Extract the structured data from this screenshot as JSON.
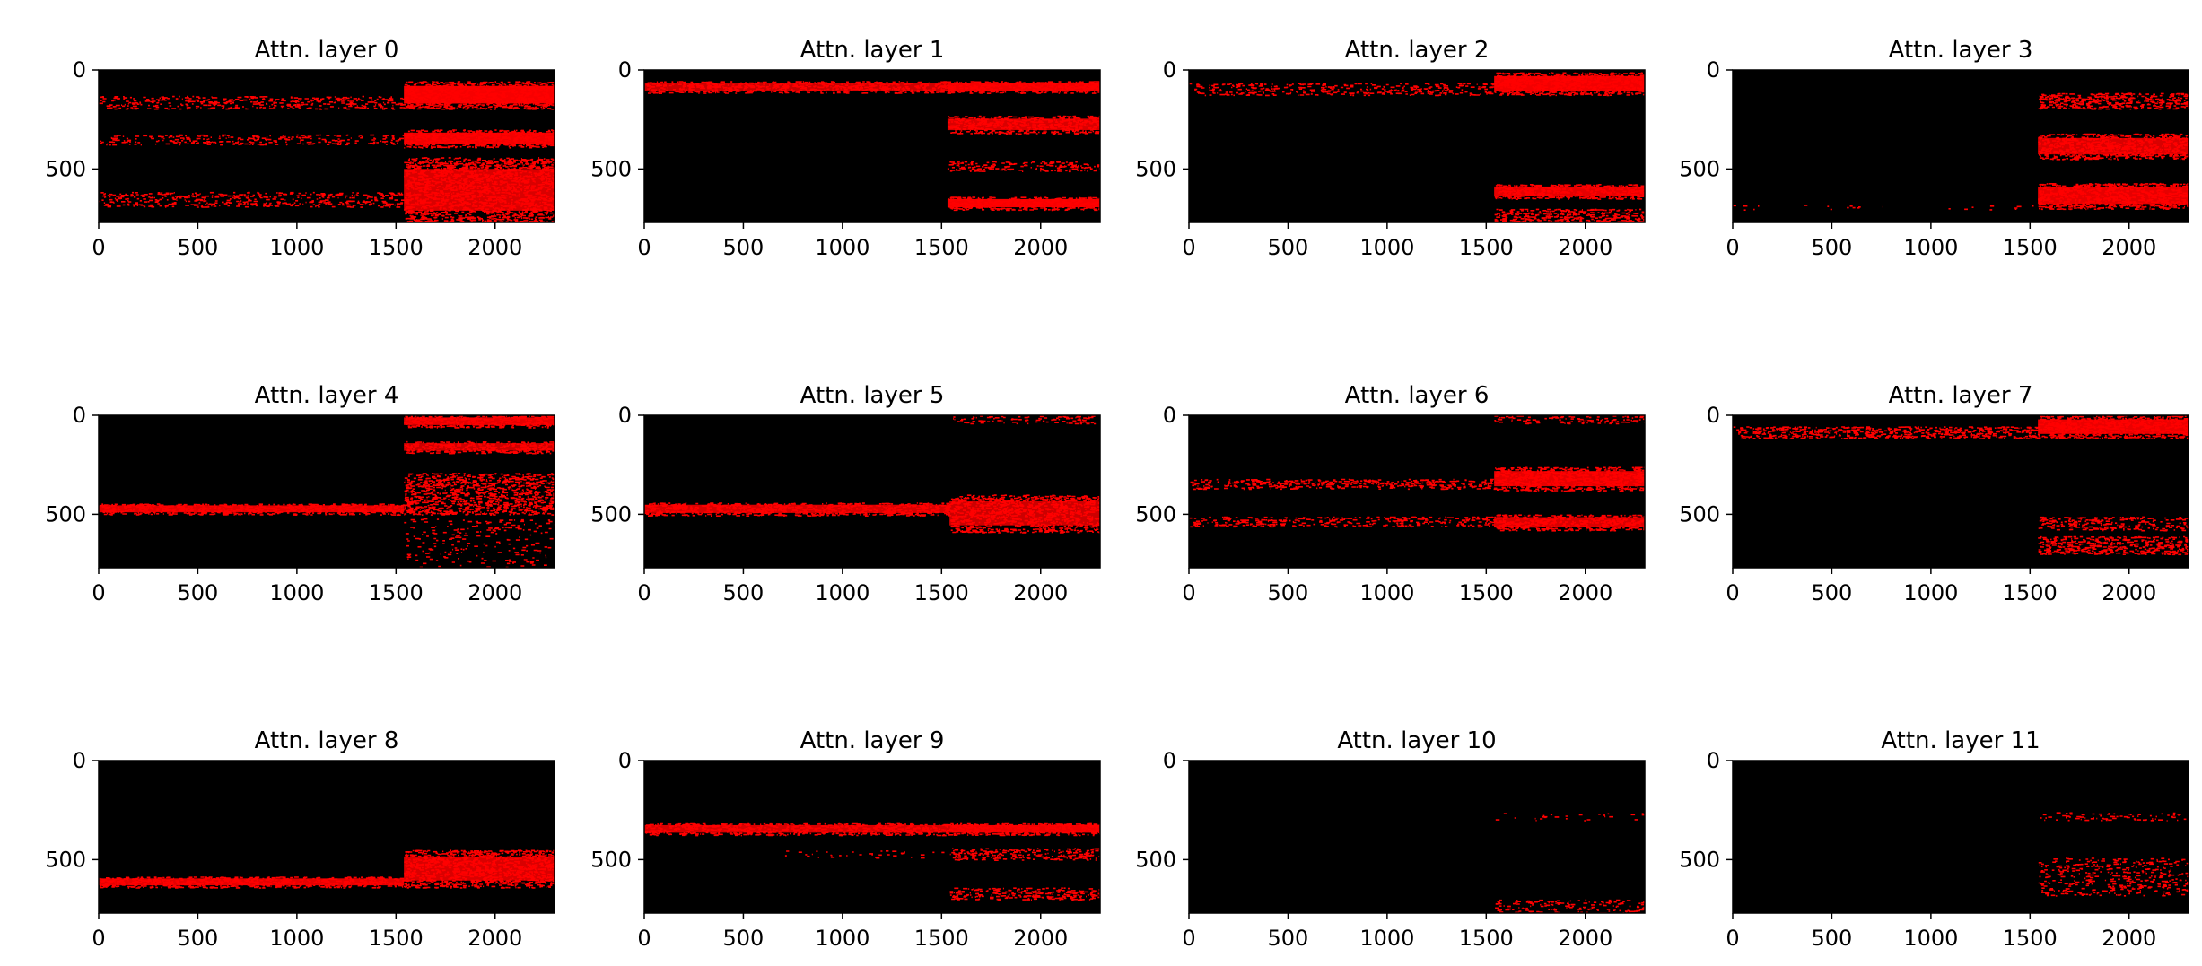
{
  "figure": {
    "background": "#ffffff",
    "plot_background": "#000000",
    "mark_color": "#ff0000"
  },
  "chart_data": [
    {
      "type": "heatmap",
      "title": "Attn. layer 0",
      "xlim": [
        0,
        2300
      ],
      "ylim": [
        770,
        0
      ],
      "xticks": [
        "0",
        "500",
        "1000",
        "1500",
        "2000"
      ],
      "yticks": [
        "0",
        "500"
      ],
      "xtick_values": [
        0,
        500,
        1000,
        1500,
        2000
      ],
      "ytick_values": [
        0,
        500
      ],
      "bands": [
        {
          "x": [
            0,
            1540
          ],
          "y": [
            130,
            195
          ],
          "density": 0.45
        },
        {
          "x": [
            0,
            1540
          ],
          "y": [
            325,
            375
          ],
          "density": 0.4
        },
        {
          "x": [
            0,
            1540
          ],
          "y": [
            615,
            690
          ],
          "density": 0.45
        },
        {
          "x": [
            1540,
            2300
          ],
          "y": [
            55,
            195
          ],
          "density": 0.97
        },
        {
          "x": [
            1540,
            2300
          ],
          "y": [
            300,
            390
          ],
          "density": 0.95
        },
        {
          "x": [
            1540,
            2300
          ],
          "y": [
            440,
            770
          ],
          "density": 0.85
        }
      ]
    },
    {
      "type": "heatmap",
      "title": "Attn. layer 1",
      "xlim": [
        0,
        2300
      ],
      "ylim": [
        770,
        0
      ],
      "xticks": [
        "0",
        "500",
        "1000",
        "1500",
        "2000"
      ],
      "yticks": [
        "0",
        "500"
      ],
      "xtick_values": [
        0,
        500,
        1000,
        1500,
        2000
      ],
      "ytick_values": [
        0,
        500
      ],
      "bands": [
        {
          "x": [
            0,
            1530
          ],
          "y": [
            55,
            115
          ],
          "density": 0.8
        },
        {
          "x": [
            1530,
            2300
          ],
          "y": [
            55,
            115
          ],
          "density": 0.95
        },
        {
          "x": [
            1530,
            2300
          ],
          "y": [
            230,
            320
          ],
          "density": 0.85
        },
        {
          "x": [
            1530,
            2300
          ],
          "y": [
            460,
            510
          ],
          "density": 0.5
        },
        {
          "x": [
            1530,
            2300
          ],
          "y": [
            640,
            705
          ],
          "density": 0.97
        }
      ]
    },
    {
      "type": "heatmap",
      "title": "Attn. layer 2",
      "xlim": [
        0,
        2300
      ],
      "ylim": [
        770,
        0
      ],
      "xticks": [
        "0",
        "500",
        "1000",
        "1500",
        "2000"
      ],
      "yticks": [
        "0",
        "500"
      ],
      "xtick_values": [
        0,
        500,
        1000,
        1500,
        2000
      ],
      "ytick_values": [
        0,
        500
      ],
      "bands": [
        {
          "x": [
            0,
            1540
          ],
          "y": [
            65,
            125
          ],
          "density": 0.45
        },
        {
          "x": [
            1540,
            2300
          ],
          "y": [
            10,
            125
          ],
          "density": 0.95
        },
        {
          "x": [
            1540,
            2300
          ],
          "y": [
            575,
            650
          ],
          "density": 0.9
        },
        {
          "x": [
            1540,
            2300
          ],
          "y": [
            700,
            770
          ],
          "density": 0.7
        }
      ]
    },
    {
      "type": "heatmap",
      "title": "Attn. layer 3",
      "xlim": [
        0,
        2300
      ],
      "ylim": [
        770,
        0
      ],
      "xticks": [
        "0",
        "500",
        "1000",
        "1500",
        "2000"
      ],
      "yticks": [
        "0",
        "500"
      ],
      "xtick_values": [
        0,
        500,
        1000,
        1500,
        2000
      ],
      "ytick_values": [
        0,
        500
      ],
      "bands": [
        {
          "x": [
            0,
            1540
          ],
          "y": [
            680,
            705
          ],
          "density": 0.05
        },
        {
          "x": [
            1540,
            2300
          ],
          "y": [
            115,
            195
          ],
          "density": 0.75
        },
        {
          "x": [
            1540,
            2300
          ],
          "y": [
            320,
            450
          ],
          "density": 0.85
        },
        {
          "x": [
            1540,
            2300
          ],
          "y": [
            570,
            700
          ],
          "density": 0.9
        }
      ]
    },
    {
      "type": "heatmap",
      "title": "Attn. layer 4",
      "xlim": [
        0,
        2300
      ],
      "ylim": [
        770,
        0
      ],
      "xticks": [
        "0",
        "500",
        "1000",
        "1500",
        "2000"
      ],
      "yticks": [
        "0",
        "500"
      ],
      "xtick_values": [
        0,
        500,
        1000,
        1500,
        2000
      ],
      "ytick_values": [
        0,
        500
      ],
      "bands": [
        {
          "x": [
            0,
            1540
          ],
          "y": [
            445,
            500
          ],
          "density": 0.9
        },
        {
          "x": [
            1540,
            2300
          ],
          "y": [
            0,
            60
          ],
          "density": 0.9
        },
        {
          "x": [
            1540,
            2300
          ],
          "y": [
            130,
            190
          ],
          "density": 0.8
        },
        {
          "x": [
            1540,
            2300
          ],
          "y": [
            290,
            500
          ],
          "density": 0.75
        },
        {
          "x": [
            1540,
            2300
          ],
          "y": [
            520,
            770
          ],
          "density": 0.12
        }
      ]
    },
    {
      "type": "heatmap",
      "title": "Attn. layer 5",
      "xlim": [
        0,
        2300
      ],
      "ylim": [
        770,
        0
      ],
      "xticks": [
        "0",
        "500",
        "1000",
        "1500",
        "2000"
      ],
      "yticks": [
        "0",
        "500"
      ],
      "xtick_values": [
        0,
        500,
        1000,
        1500,
        2000
      ],
      "ytick_values": [
        0,
        500
      ],
      "bands": [
        {
          "x": [
            0,
            1540
          ],
          "y": [
            440,
            505
          ],
          "density": 0.85
        },
        {
          "x": [
            1540,
            2300
          ],
          "y": [
            0,
            40
          ],
          "density": 0.35
        },
        {
          "x": [
            1540,
            2300
          ],
          "y": [
            400,
            590
          ],
          "density": 0.8
        }
      ]
    },
    {
      "type": "heatmap",
      "title": "Attn. layer 6",
      "xlim": [
        0,
        2300
      ],
      "ylim": [
        770,
        0
      ],
      "xticks": [
        "0",
        "500",
        "1000",
        "1500",
        "2000"
      ],
      "yticks": [
        "0",
        "500"
      ],
      "xtick_values": [
        0,
        500,
        1000,
        1500,
        2000
      ],
      "ytick_values": [
        0,
        500
      ],
      "bands": [
        {
          "x": [
            0,
            1540
          ],
          "y": [
            320,
            370
          ],
          "density": 0.6
        },
        {
          "x": [
            0,
            1540
          ],
          "y": [
            510,
            560
          ],
          "density": 0.5
        },
        {
          "x": [
            1540,
            2300
          ],
          "y": [
            0,
            40
          ],
          "density": 0.4
        },
        {
          "x": [
            1540,
            2300
          ],
          "y": [
            260,
            380
          ],
          "density": 0.9
        },
        {
          "x": [
            1540,
            2300
          ],
          "y": [
            500,
            580
          ],
          "density": 0.85
        }
      ]
    },
    {
      "type": "heatmap",
      "title": "Attn. layer 7",
      "xlim": [
        0,
        2300
      ],
      "ylim": [
        770,
        0
      ],
      "xticks": [
        "0",
        "500",
        "1000",
        "1500",
        "2000"
      ],
      "yticks": [
        "0",
        "500"
      ],
      "xtick_values": [
        0,
        500,
        1000,
        1500,
        2000
      ],
      "ytick_values": [
        0,
        500
      ],
      "bands": [
        {
          "x": [
            0,
            1540
          ],
          "y": [
            55,
            115
          ],
          "density": 0.75
        },
        {
          "x": [
            1540,
            2300
          ],
          "y": [
            0,
            115
          ],
          "density": 0.92
        },
        {
          "x": [
            1540,
            2300
          ],
          "y": [
            510,
            580
          ],
          "density": 0.5
        },
        {
          "x": [
            1540,
            2300
          ],
          "y": [
            610,
            700
          ],
          "density": 0.7
        }
      ]
    },
    {
      "type": "heatmap",
      "title": "Attn. layer 8",
      "xlim": [
        0,
        2300
      ],
      "ylim": [
        770,
        0
      ],
      "xticks": [
        "0",
        "500",
        "1000",
        "1500",
        "2000"
      ],
      "yticks": [
        "0",
        "500"
      ],
      "xtick_values": [
        0,
        500,
        1000,
        1500,
        2000
      ],
      "ytick_values": [
        0,
        500
      ],
      "bands": [
        {
          "x": [
            0,
            1540
          ],
          "y": [
            585,
            640
          ],
          "density": 0.9
        },
        {
          "x": [
            1540,
            2300
          ],
          "y": [
            450,
            640
          ],
          "density": 0.85
        }
      ]
    },
    {
      "type": "heatmap",
      "title": "Attn. layer 9",
      "xlim": [
        0,
        2300
      ],
      "ylim": [
        770,
        0
      ],
      "xticks": [
        "0",
        "500",
        "1000",
        "1500",
        "2000"
      ],
      "yticks": [
        "0",
        "500"
      ],
      "xtick_values": [
        0,
        500,
        1000,
        1500,
        2000
      ],
      "ytick_values": [
        0,
        500
      ],
      "bands": [
        {
          "x": [
            0,
            1540
          ],
          "y": [
            315,
            375
          ],
          "density": 0.85
        },
        {
          "x": [
            700,
            1540
          ],
          "y": [
            450,
            490
          ],
          "density": 0.1
        },
        {
          "x": [
            1540,
            2300
          ],
          "y": [
            315,
            375
          ],
          "density": 0.95
        },
        {
          "x": [
            1540,
            2300
          ],
          "y": [
            440,
            500
          ],
          "density": 0.6
        },
        {
          "x": [
            1540,
            2300
          ],
          "y": [
            640,
            700
          ],
          "density": 0.6
        }
      ]
    },
    {
      "type": "heatmap",
      "title": "Attn. layer 10",
      "xlim": [
        0,
        2300
      ],
      "ylim": [
        770,
        0
      ],
      "xticks": [
        "0",
        "500",
        "1000",
        "1500",
        "2000"
      ],
      "yticks": [
        "0",
        "500"
      ],
      "xtick_values": [
        0,
        500,
        1000,
        1500,
        2000
      ],
      "ytick_values": [
        0,
        500
      ],
      "bands": [
        {
          "x": [
            1540,
            2300
          ],
          "y": [
            260,
            300
          ],
          "density": 0.08
        },
        {
          "x": [
            1540,
            2300
          ],
          "y": [
            700,
            770
          ],
          "density": 0.35
        }
      ]
    },
    {
      "type": "heatmap",
      "title": "Attn. layer 11",
      "xlim": [
        0,
        2300
      ],
      "ylim": [
        770,
        0
      ],
      "xticks": [
        "0",
        "500",
        "1000",
        "1500",
        "2000"
      ],
      "yticks": [
        "0",
        "500"
      ],
      "xtick_values": [
        0,
        500,
        1000,
        1500,
        2000
      ],
      "ytick_values": [
        0,
        500
      ],
      "bands": [
        {
          "x": [
            1540,
            2300
          ],
          "y": [
            260,
            300
          ],
          "density": 0.25
        },
        {
          "x": [
            1540,
            2300
          ],
          "y": [
            490,
            680
          ],
          "density": 0.3
        }
      ]
    }
  ]
}
